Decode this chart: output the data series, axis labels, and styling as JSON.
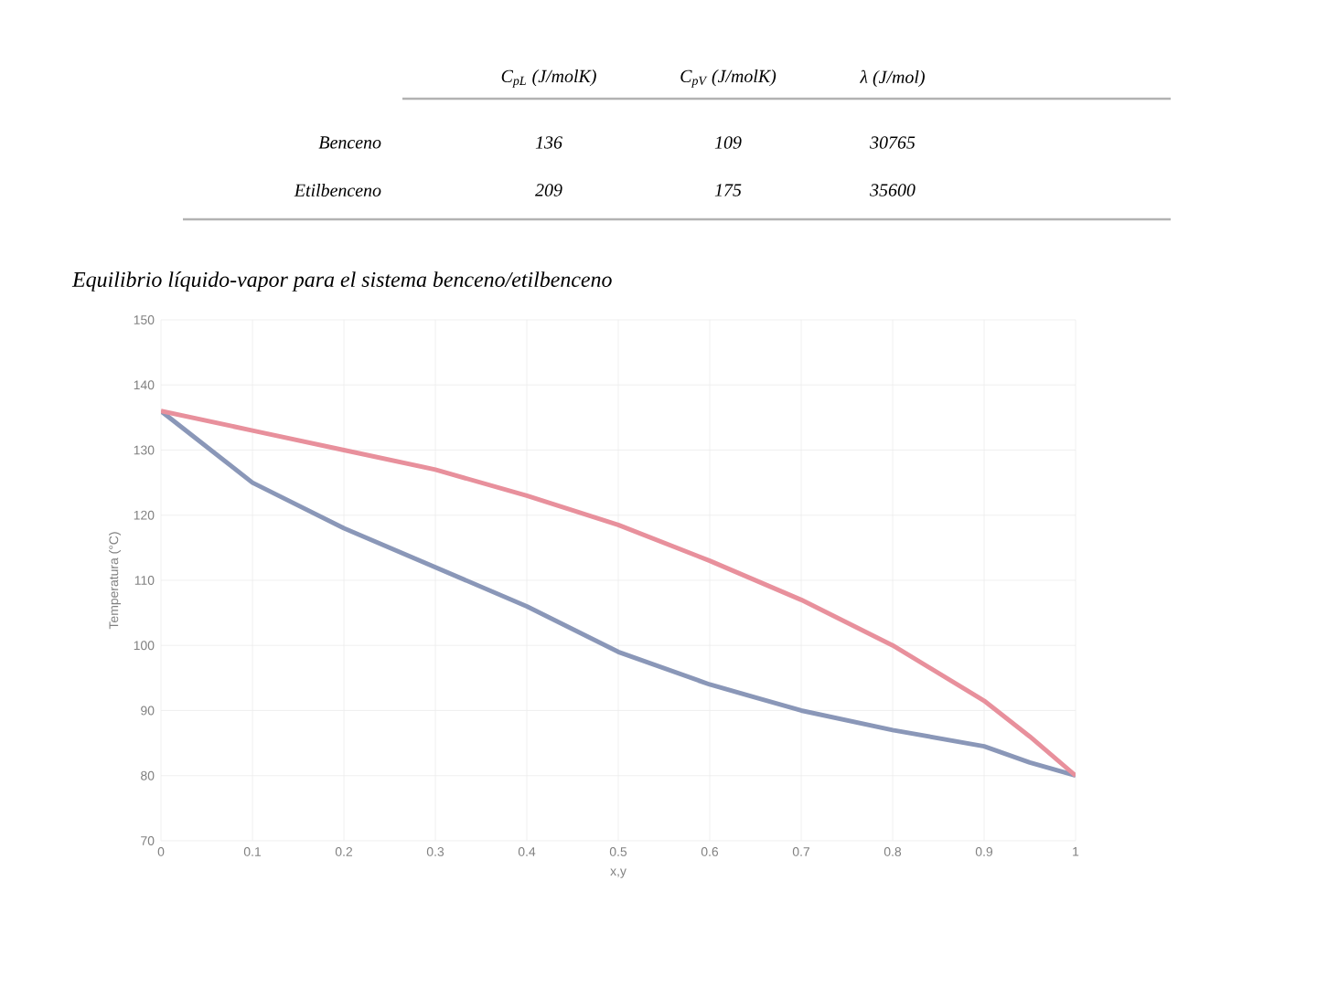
{
  "chart_data": {
    "type": "line",
    "title": "Equilibrio líquido-vapor para el sistema benceno/etilbenceno",
    "xlabel": "x,y",
    "ylabel": "Temperatura (°C)",
    "annotations": [
      "C$_{pL}$ (J/molK)",
      "C$_{pV}$ (J/molK)",
      "λ (J/mol)",
      "Benceno",
      "136",
      "109",
      "30765",
      "Etilbenceno",
      "209",
      "175",
      "35600"
    ],
    "x": [
      0,
      0.1,
      0.2,
      0.3,
      0.4,
      0.5,
      0.6,
      0.7,
      0.8,
      0.9,
      0.95,
      1
    ],
    "series": [
      {
        "color": "#8a97b8",
        "values": [
          136,
          125,
          118,
          112,
          106,
          99,
          94,
          90,
          87,
          84.5,
          82,
          80
        ]
      },
      {
        "color": "#e8909c",
        "values": [
          136,
          133,
          130,
          127,
          123,
          118.5,
          113,
          107,
          100,
          91.5,
          86,
          80
        ]
      }
    ],
    "xlim": [
      0,
      1
    ],
    "ylim": [
      70,
      150
    ],
    "xticks": [
      0,
      0.1,
      0.2,
      0.3,
      0.4,
      0.5,
      0.6,
      0.7,
      0.8,
      0.9,
      1
    ],
    "yticks": [
      70,
      80,
      90,
      100,
      110,
      120,
      130,
      140,
      150
    ],
    "grid": true,
    "marker": "none",
    "line_style": "solid"
  }
}
